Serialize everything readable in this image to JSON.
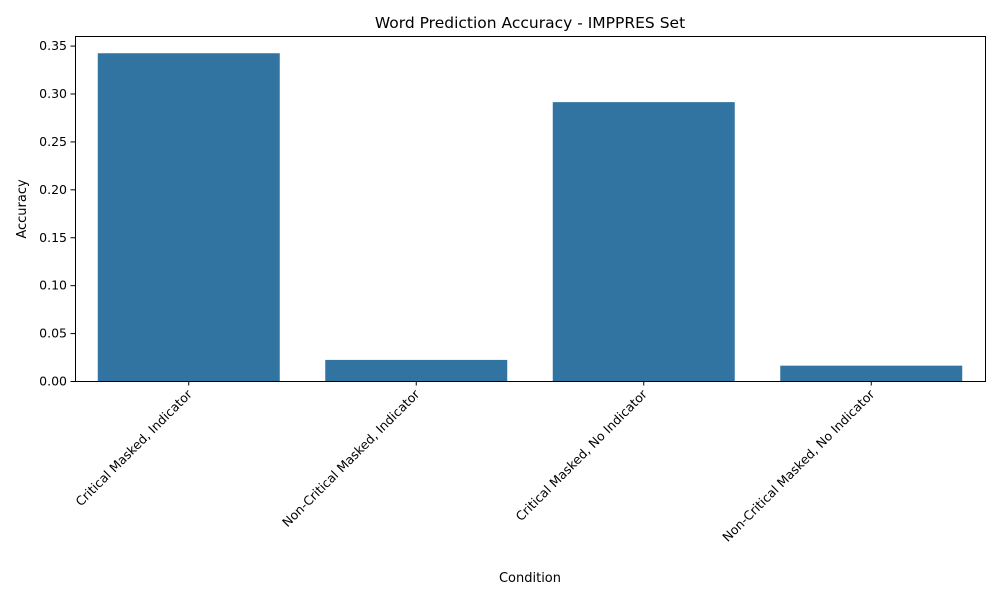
{
  "chart_data": {
    "type": "bar",
    "title": "Word Prediction Accuracy - IMPPRES Set",
    "xlabel": "Condition",
    "ylabel": "Accuracy",
    "categories": [
      "Critical Masked, Indicator",
      "Non-Critical Masked, Indicator",
      "Critical Masked, No Indicator",
      "Non-Critical Masked, No Indicator"
    ],
    "values": [
      0.342,
      0.022,
      0.291,
      0.016
    ],
    "ylim": [
      0,
      0.36
    ],
    "yticks": [
      0.0,
      0.05,
      0.1,
      0.15,
      0.2,
      0.25,
      0.3,
      0.35
    ],
    "ytick_labels": [
      "0.00",
      "0.05",
      "0.10",
      "0.15",
      "0.20",
      "0.25",
      "0.30",
      "0.35"
    ],
    "bar_color": "#3274a1",
    "grid": false,
    "legend": "none"
  }
}
